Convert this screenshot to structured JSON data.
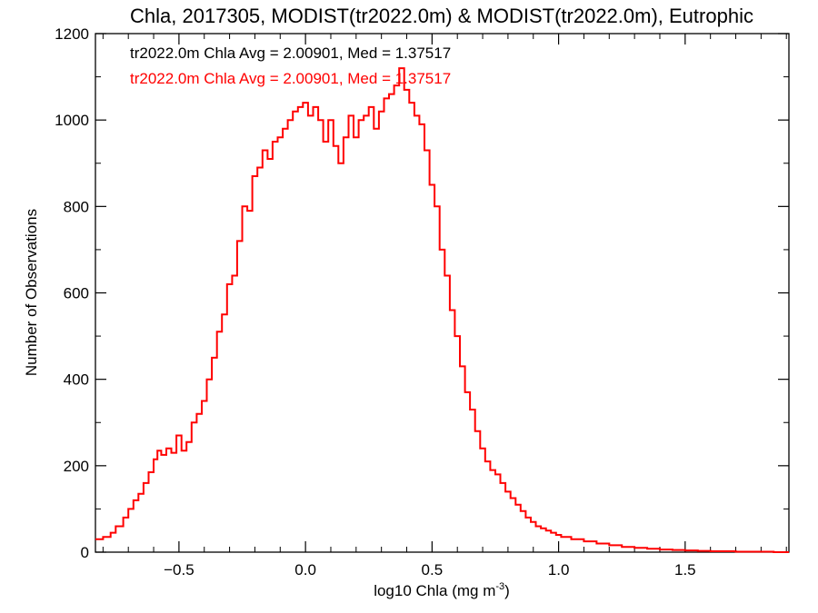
{
  "chart_data": {
    "type": "line",
    "title": "Chla, 2017305, MODIST(tr2022.0m) & MODIST(tr2022.0m), Eutrophic",
    "xlabel": "log10 Chla (mg m",
    "xlabel_sup": "-3",
    "xlabel_close": ")",
    "ylabel": "Number of Observations",
    "xlim": [
      -0.83,
      1.91
    ],
    "ylim": [
      0,
      1200
    ],
    "xticks": [
      -0.5,
      0.0,
      0.5,
      1.0,
      1.5
    ],
    "xtick_labels": [
      "−0.5",
      "0.0",
      "0.5",
      "1.0",
      "1.5"
    ],
    "yticks": [
      0,
      200,
      400,
      600,
      800,
      1000,
      1200
    ],
    "ytick_labels": [
      "0",
      "200",
      "400",
      "600",
      "800",
      "1000",
      "1200"
    ],
    "grid": false,
    "annotations": [
      {
        "text": "tr2022.0m Chla Avg = 2.00901, Med = 1.37517",
        "color": "#000000"
      },
      {
        "text": "tr2022.0m Chla Avg = 2.00901, Med = 1.37517",
        "color": "#ff0000"
      }
    ],
    "series": [
      {
        "color": "#ff0000",
        "x": [
          -0.83,
          -0.8,
          -0.77,
          -0.75,
          -0.72,
          -0.7,
          -0.68,
          -0.66,
          -0.64,
          -0.62,
          -0.6,
          -0.585,
          -0.57,
          -0.55,
          -0.53,
          -0.51,
          -0.49,
          -0.47,
          -0.45,
          -0.43,
          -0.41,
          -0.39,
          -0.37,
          -0.35,
          -0.33,
          -0.31,
          -0.29,
          -0.27,
          -0.25,
          -0.23,
          -0.21,
          -0.19,
          -0.17,
          -0.15,
          -0.13,
          -0.11,
          -0.09,
          -0.07,
          -0.05,
          -0.03,
          -0.01,
          0.01,
          0.03,
          0.05,
          0.07,
          0.09,
          0.11,
          0.13,
          0.15,
          0.17,
          0.19,
          0.21,
          0.23,
          0.25,
          0.27,
          0.29,
          0.31,
          0.33,
          0.35,
          0.37,
          0.39,
          0.41,
          0.43,
          0.45,
          0.47,
          0.49,
          0.51,
          0.53,
          0.55,
          0.57,
          0.59,
          0.61,
          0.63,
          0.65,
          0.67,
          0.69,
          0.71,
          0.73,
          0.75,
          0.77,
          0.79,
          0.81,
          0.83,
          0.85,
          0.87,
          0.89,
          0.91,
          0.93,
          0.95,
          0.97,
          0.99,
          1.01,
          1.05,
          1.1,
          1.15,
          1.2,
          1.25,
          1.3,
          1.35,
          1.4,
          1.45,
          1.5,
          1.55,
          1.6,
          1.65,
          1.7,
          1.75,
          1.8,
          1.85,
          1.91
        ],
        "y": [
          30,
          35,
          45,
          60,
          80,
          100,
          120,
          135,
          160,
          185,
          215,
          235,
          225,
          240,
          230,
          270,
          235,
          255,
          300,
          320,
          350,
          400,
          450,
          510,
          550,
          620,
          640,
          720,
          800,
          790,
          870,
          890,
          930,
          910,
          950,
          960,
          980,
          1000,
          1020,
          1030,
          1040,
          1010,
          1030,
          1000,
          950,
          1000,
          940,
          900,
          960,
          1010,
          960,
          1000,
          1010,
          1030,
          980,
          1020,
          1050,
          1060,
          1080,
          1120,
          1070,
          1040,
          1010,
          990,
          930,
          850,
          800,
          700,
          640,
          560,
          500,
          430,
          370,
          330,
          280,
          240,
          210,
          190,
          180,
          160,
          140,
          125,
          110,
          95,
          80,
          70,
          60,
          55,
          50,
          45,
          40,
          35,
          30,
          25,
          20,
          16,
          12,
          10,
          8,
          6,
          5,
          4,
          3,
          2,
          2,
          1,
          1,
          1,
          0,
          0
        ]
      }
    ]
  }
}
